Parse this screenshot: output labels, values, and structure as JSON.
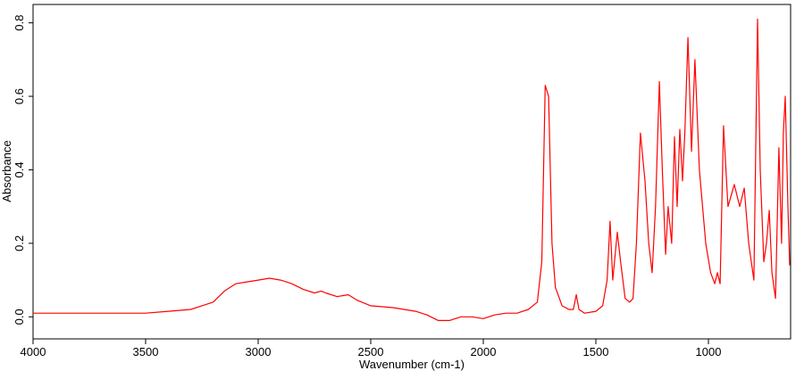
{
  "chart_data": {
    "type": "line",
    "xlabel": "Wavenumber (cm-1)",
    "ylabel": "Absorbance",
    "x": [
      4000,
      3800,
      3600,
      3500,
      3400,
      3300,
      3250,
      3200,
      3150,
      3100,
      3050,
      3000,
      2950,
      2900,
      2850,
      2800,
      2750,
      2720,
      2700,
      2650,
      2600,
      2560,
      2500,
      2400,
      2300,
      2250,
      2200,
      2150,
      2100,
      2050,
      2000,
      1950,
      1900,
      1850,
      1800,
      1760,
      1740,
      1725,
      1710,
      1695,
      1680,
      1650,
      1620,
      1600,
      1587,
      1575,
      1550,
      1500,
      1470,
      1450,
      1437,
      1425,
      1405,
      1390,
      1370,
      1350,
      1335,
      1320,
      1302,
      1282,
      1265,
      1250,
      1235,
      1218,
      1205,
      1190,
      1179,
      1163,
      1151,
      1139,
      1127,
      1115,
      1105,
      1091,
      1075,
      1060,
      1040,
      1012,
      990,
      972,
      960,
      948,
      933,
      913,
      885,
      861,
      841,
      821,
      798,
      782,
      770,
      754,
      742,
      730,
      718,
      702,
      687,
      675,
      667,
      659,
      647,
      639
    ],
    "values": [
      0.01,
      0.01,
      0.01,
      0.01,
      0.015,
      0.02,
      0.03,
      0.04,
      0.07,
      0.09,
      0.095,
      0.1,
      0.105,
      0.1,
      0.09,
      0.075,
      0.065,
      0.07,
      0.065,
      0.055,
      0.06,
      0.045,
      0.03,
      0.025,
      0.015,
      0.005,
      -0.01,
      -0.01,
      0.0,
      0.0,
      -0.005,
      0.005,
      0.01,
      0.01,
      0.02,
      0.04,
      0.15,
      0.63,
      0.6,
      0.2,
      0.08,
      0.03,
      0.02,
      0.02,
      0.06,
      0.02,
      0.01,
      0.015,
      0.03,
      0.1,
      0.26,
      0.1,
      0.23,
      0.15,
      0.05,
      0.04,
      0.05,
      0.2,
      0.5,
      0.37,
      0.2,
      0.12,
      0.3,
      0.64,
      0.4,
      0.17,
      0.3,
      0.2,
      0.49,
      0.3,
      0.51,
      0.37,
      0.5,
      0.76,
      0.45,
      0.7,
      0.4,
      0.2,
      0.12,
      0.09,
      0.12,
      0.09,
      0.52,
      0.3,
      0.36,
      0.3,
      0.35,
      0.2,
      0.1,
      0.81,
      0.4,
      0.15,
      0.2,
      0.29,
      0.12,
      0.05,
      0.46,
      0.2,
      0.5,
      0.6,
      0.3,
      0.14
    ],
    "color": "#ff0000",
    "xlim": [
      4000,
      635
    ],
    "xticks": [
      4000,
      3500,
      3000,
      2500,
      2000,
      1500,
      1000
    ],
    "ylim": [
      -0.06,
      0.85
    ],
    "yticks": [
      {
        "value": 0,
        "label": "0.0"
      },
      0.2,
      0.4,
      0.6,
      0.8
    ]
  }
}
